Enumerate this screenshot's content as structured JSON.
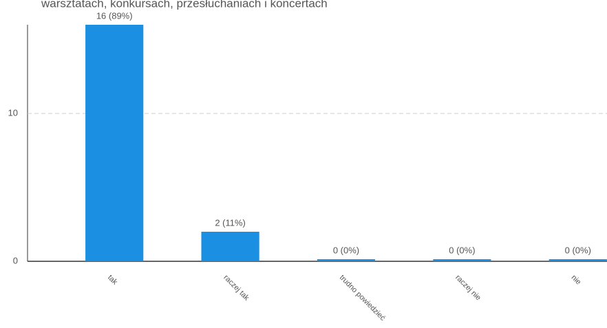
{
  "chart_data": {
    "type": "bar",
    "title": "warsztatach, konkursach, przesłuchaniach i koncertach",
    "categories": [
      "tak",
      "raczej tak",
      "trudno powiedzieć",
      "raczej nie",
      "nie"
    ],
    "values": [
      16,
      2,
      0,
      0,
      0
    ],
    "value_labels": [
      "16 (89%)",
      "2 (11%)",
      "0 (0%)",
      "0 (0%)",
      "0 (0%)"
    ],
    "color": "#1b8fe2",
    "ylim": [
      0,
      16
    ],
    "yticks": [
      0,
      10
    ],
    "grid": true
  }
}
